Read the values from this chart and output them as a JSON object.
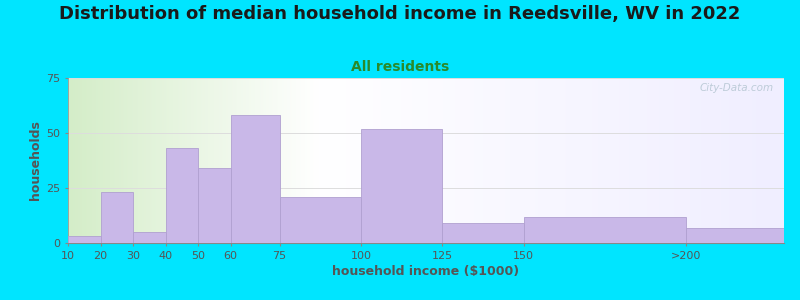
{
  "title": "Distribution of median household income in Reedsville, WV in 2022",
  "subtitle": "All residents",
  "xlabel": "household income ($1000)",
  "ylabel": "households",
  "background_outer": "#00e5ff",
  "bar_color": "#c9b8e8",
  "bar_edge_color": "#b0a0d0",
  "edges": [
    10,
    20,
    30,
    40,
    50,
    60,
    75,
    100,
    125,
    150,
    200,
    230
  ],
  "tick_positions": [
    10,
    20,
    30,
    40,
    50,
    60,
    75,
    100,
    125,
    150,
    200
  ],
  "tick_labels": [
    "10",
    "20",
    "30",
    "40",
    "50",
    "60",
    "75",
    "100",
    "125",
    "150",
    ">200"
  ],
  "values": [
    3,
    23,
    5,
    43,
    34,
    58,
    21,
    52,
    9,
    12,
    7
  ],
  "ylim": [
    0,
    75
  ],
  "yticks": [
    0,
    25,
    50,
    75
  ],
  "title_fontsize": 13,
  "subtitle_fontsize": 10,
  "axis_label_fontsize": 9,
  "tick_fontsize": 8,
  "watermark_text": "City-Data.com",
  "watermark_color": "#b8c8d4",
  "title_color": "#1a1a1a",
  "subtitle_color": "#2a8a2a",
  "axis_label_color": "#555555",
  "tick_color": "#555555",
  "grid_color": "#dddddd"
}
